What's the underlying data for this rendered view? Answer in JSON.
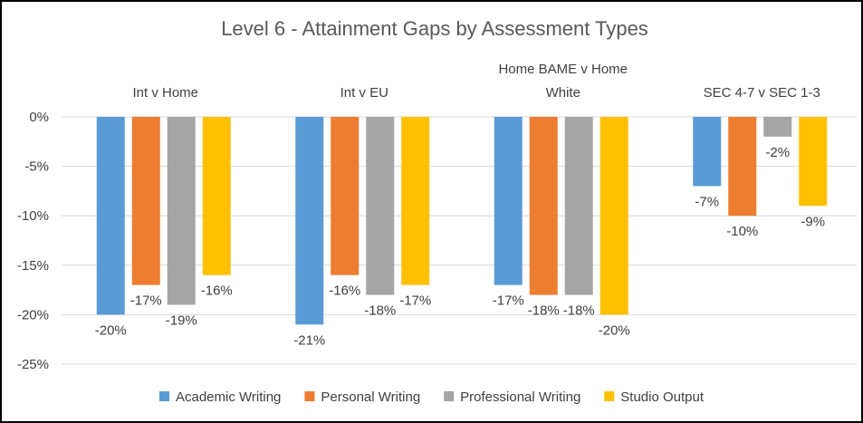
{
  "chart_data": {
    "type": "bar",
    "title": "Level 6 - Attainment Gaps by Assessment Types",
    "categories": [
      "Int v Home",
      "Int v EU",
      "Home BAME v Home White",
      "SEC 4-7 v SEC 1-3"
    ],
    "category_lines": [
      [
        "Int v Home"
      ],
      [
        "Int v EU"
      ],
      [
        "Home BAME v Home",
        "White"
      ],
      [
        "SEC 4-7 v SEC 1-3"
      ]
    ],
    "series": [
      {
        "name": "Academic Writing",
        "color": "#5B9BD5",
        "values": [
          -20,
          -21,
          -17,
          -7
        ],
        "labels": [
          "-20%",
          "-21%",
          "-17%",
          "-7%"
        ]
      },
      {
        "name": "Personal Writing",
        "color": "#ED7D31",
        "values": [
          -17,
          -16,
          -18,
          -10
        ],
        "labels": [
          "-17%",
          "-16%",
          "-18%",
          "-10%"
        ]
      },
      {
        "name": "Professional Writing",
        "color": "#A5A5A5",
        "values": [
          -19,
          -18,
          -18,
          -2
        ],
        "labels": [
          "-19%",
          "-18%",
          "-18%",
          "-2%"
        ]
      },
      {
        "name": "Studio Output",
        "color": "#FFC000",
        "values": [
          -16,
          -17,
          -20,
          -9
        ],
        "labels": [
          "-16%",
          "-17%",
          "-20%",
          "-9%"
        ]
      }
    ],
    "ylim": [
      -25,
      0
    ],
    "y_ticks": [
      0,
      -5,
      -10,
      -15,
      -20,
      -25
    ],
    "y_tick_labels": [
      "0%",
      "-5%",
      "-10%",
      "-15%",
      "-20%",
      "-25%"
    ],
    "grid": true,
    "legend_position": "bottom"
  }
}
